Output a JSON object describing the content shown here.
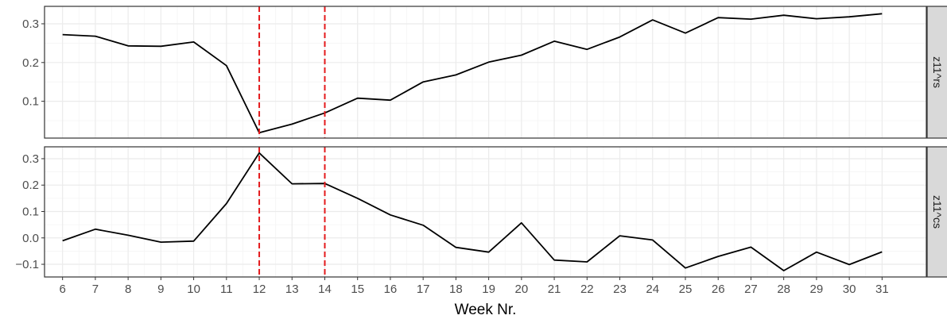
{
  "chart_data": {
    "type": "line",
    "xlabel": "Week Nr.",
    "x": [
      6,
      7,
      8,
      9,
      10,
      11,
      12,
      13,
      14,
      15,
      16,
      17,
      18,
      19,
      20,
      21,
      22,
      23,
      24,
      25,
      26,
      27,
      28,
      29,
      30,
      31
    ],
    "panels": [
      {
        "strip_label": "z11^rs",
        "ylim": [
          0.005,
          0.345
        ],
        "yticks": [
          0.1,
          0.2,
          0.3
        ],
        "ytick_labels": [
          "0.1",
          "0.2",
          "0.3"
        ],
        "values": [
          0.272,
          0.268,
          0.243,
          0.242,
          0.253,
          0.192,
          0.019,
          0.041,
          0.07,
          0.108,
          0.103,
          0.15,
          0.168,
          0.201,
          0.219,
          0.255,
          0.234,
          0.266,
          0.31,
          0.276,
          0.316,
          0.312,
          0.322,
          0.313,
          0.318,
          0.326
        ],
        "line_color": "#000000"
      },
      {
        "strip_label": "z11^cs",
        "ylim": [
          -0.148,
          0.345
        ],
        "yticks": [
          -0.1,
          0.0,
          0.1,
          0.2,
          0.3
        ],
        "ytick_labels": [
          "−0.1",
          "0.0",
          "0.1",
          "0.2",
          "0.3"
        ],
        "values": [
          -0.011,
          0.033,
          0.01,
          -0.016,
          -0.012,
          0.13,
          0.322,
          0.205,
          0.206,
          0.15,
          0.087,
          0.048,
          -0.036,
          -0.054,
          0.057,
          -0.084,
          -0.091,
          0.008,
          -0.008,
          -0.114,
          -0.07,
          -0.035,
          -0.124,
          -0.054,
          -0.101,
          -0.053
        ],
        "line_color": "#000000"
      }
    ],
    "vlines": [
      12,
      14
    ],
    "vline_color": "#e41a1c",
    "xlim": [
      5.45,
      32.35
    ],
    "grid": true
  }
}
